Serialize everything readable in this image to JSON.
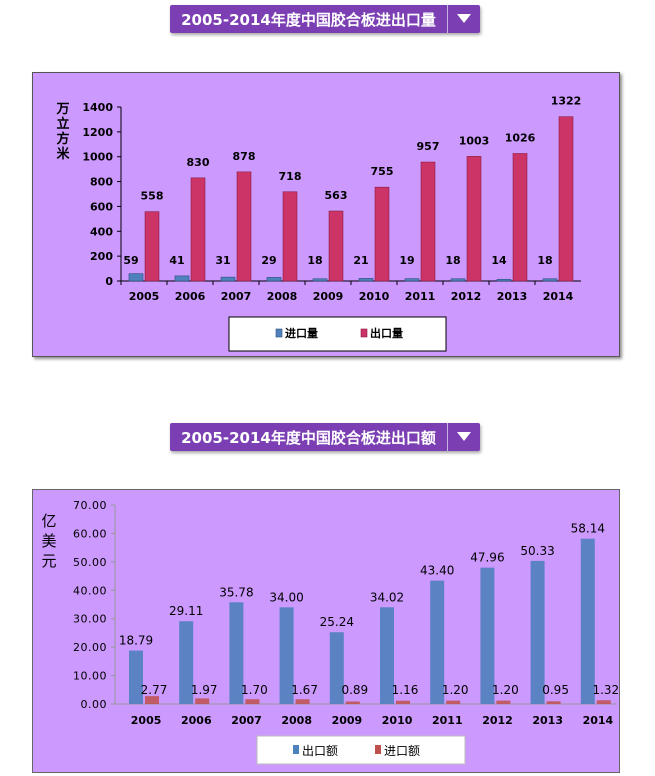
{
  "titles": {
    "chart1": "2005-2014年度中国胶合板进出口量",
    "chart2": "2005-2014年度中国胶合板进出口额"
  },
  "icons": {
    "dropdown": "triangle-down-icon"
  },
  "colors": {
    "title_bg": "#7b3fb3",
    "chart_bg": "#cc99ff",
    "import_blue": "#4f81bd",
    "export_red": "#c0504d"
  },
  "chart_data": [
    {
      "type": "bar",
      "categories": [
        "2005",
        "2006",
        "2007",
        "2008",
        "2009",
        "2010",
        "2011",
        "2012",
        "2013",
        "2014"
      ],
      "ylabel": "万立方米",
      "ylim": [
        0,
        1400
      ],
      "yticks": [
        0,
        200,
        400,
        600,
        800,
        1000,
        1200,
        1400
      ],
      "series": [
        {
          "name": "进口量",
          "values": [
            59,
            41,
            31,
            29,
            18,
            21,
            19,
            18,
            14,
            18
          ],
          "color": "#4f81bd"
        },
        {
          "name": "出口量",
          "values": [
            558,
            830,
            878,
            718,
            563,
            755,
            957,
            1003,
            1026,
            1322
          ],
          "color": "#cc3366"
        }
      ],
      "legend": "bottom",
      "grid": false
    },
    {
      "type": "bar",
      "categories": [
        "2005",
        "2006",
        "2007",
        "2008",
        "2009",
        "2010",
        "2011",
        "2012",
        "2013",
        "2014"
      ],
      "ylabel": "亿美元",
      "ylim": [
        0,
        70
      ],
      "yticks": [
        "0.00",
        "10.00",
        "20.00",
        "30.00",
        "40.00",
        "50.00",
        "60.00",
        "70.00"
      ],
      "series": [
        {
          "name": "出口额",
          "values": [
            18.79,
            29.11,
            35.78,
            34.0,
            25.24,
            34.02,
            43.4,
            47.96,
            50.33,
            58.14
          ],
          "labels": [
            "18.79",
            "29.11",
            "35.78",
            "34.00",
            "25.24",
            "34.02",
            "43.40",
            "47.96",
            "50.33",
            "58.14"
          ],
          "color": "#4f81bd"
        },
        {
          "name": "进口额",
          "values": [
            2.77,
            1.97,
            1.7,
            1.67,
            0.89,
            1.16,
            1.2,
            1.2,
            0.95,
            1.32
          ],
          "labels": [
            "2.77",
            "1.97",
            "1.70",
            "1.67",
            "0.89",
            "1.16",
            "1.20",
            "1.20",
            "0.95",
            "1.32"
          ],
          "color": "#c0504d"
        }
      ],
      "legend": "bottom",
      "grid": false
    }
  ]
}
